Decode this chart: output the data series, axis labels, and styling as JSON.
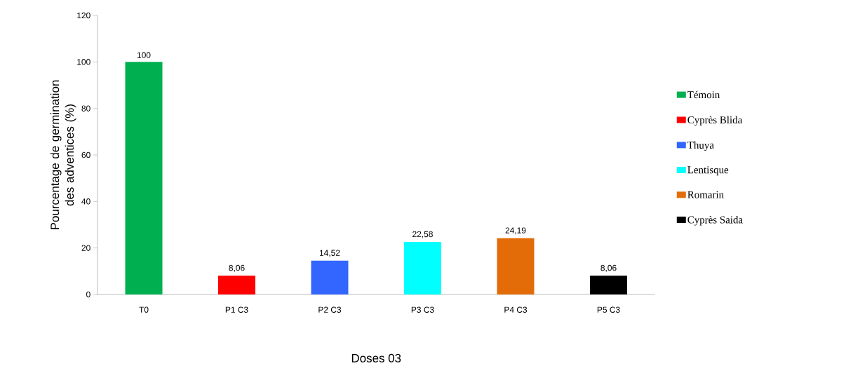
{
  "chart_data": {
    "type": "bar",
    "xlabel": "Doses 03",
    "ylabel": "Pourcentage de germination des adventices (%)",
    "categories": [
      "T0",
      "P1 C3",
      "P2 C3",
      "P3 C3",
      "P4 C3",
      "P5 C3"
    ],
    "series": [
      {
        "name": "Témoin",
        "color": "#00b050",
        "values": [
          100,
          null,
          null,
          null,
          null,
          null
        ],
        "value_labels": [
          "100",
          null,
          null,
          null,
          null,
          null
        ]
      },
      {
        "name": "Cyprès Blida",
        "color": "#ff0000",
        "values": [
          null,
          8.06,
          null,
          null,
          null,
          null
        ],
        "value_labels": [
          null,
          "8,06",
          null,
          null,
          null,
          null
        ]
      },
      {
        "name": "Thuya",
        "color": "#3366ff",
        "values": [
          null,
          null,
          14.52,
          null,
          null,
          null
        ],
        "value_labels": [
          null,
          null,
          "14,52",
          null,
          null,
          null
        ]
      },
      {
        "name": "Lentisque",
        "color": "#00ffff",
        "values": [
          null,
          null,
          null,
          22.58,
          null,
          null
        ],
        "value_labels": [
          null,
          null,
          null,
          "22,58",
          null,
          null
        ]
      },
      {
        "name": "Romarin",
        "color": "#e36c09",
        "values": [
          null,
          null,
          null,
          null,
          24.19,
          null
        ],
        "value_labels": [
          null,
          null,
          null,
          null,
          "24,19",
          null
        ]
      },
      {
        "name": "Cyprès Saida",
        "color": "#000000",
        "values": [
          null,
          null,
          null,
          null,
          null,
          8.06
        ],
        "value_labels": [
          null,
          null,
          null,
          null,
          null,
          "8,06"
        ]
      }
    ],
    "ylim": [
      0,
      120
    ],
    "yticks": [
      0,
      20,
      40,
      60,
      80,
      100,
      120
    ],
    "grid": false,
    "legend": "right"
  }
}
